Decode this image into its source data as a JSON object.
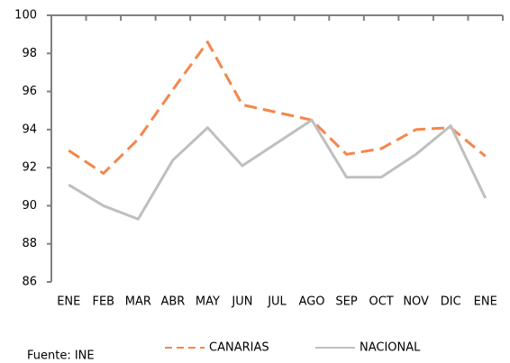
{
  "chart_data": {
    "type": "line",
    "categories": [
      "ENE",
      "FEB",
      "MAR",
      "ABR",
      "MAY",
      "JUN",
      "JUL",
      "AGO",
      "SEP",
      "OCT",
      "NOV",
      "DIC",
      "ENE"
    ],
    "series": [
      {
        "name": "CANARIAS",
        "color": "#f4874b",
        "dash": true,
        "values": [
          92.9,
          91.7,
          93.5,
          96.1,
          98.6,
          95.3,
          94.9,
          94.5,
          92.7,
          93.0,
          94.0,
          94.1,
          92.6
        ]
      },
      {
        "name": "NACIONAL",
        "color": "#bfbfbf",
        "dash": false,
        "values": [
          91.1,
          90.0,
          89.3,
          92.4,
          94.1,
          92.1,
          93.3,
          94.5,
          91.5,
          91.5,
          92.7,
          94.2,
          90.4
        ]
      }
    ],
    "ylim": [
      86,
      100
    ],
    "yticks": [
      86,
      88,
      90,
      92,
      94,
      96,
      98,
      100
    ],
    "legend": "bottom",
    "source": "Fuente: INE"
  }
}
